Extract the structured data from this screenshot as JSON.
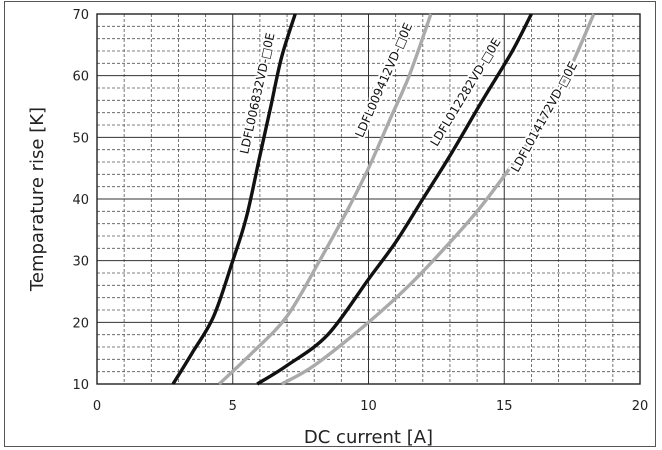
{
  "chart_data": {
    "type": "line",
    "title": "",
    "xlabel": "DC current [A]",
    "ylabel": "Temparature rise [K]",
    "xlim": [
      0,
      20
    ],
    "ylim": [
      10,
      70
    ],
    "xticks": [
      0,
      5,
      10,
      15,
      20
    ],
    "yticks": [
      10,
      20,
      30,
      40,
      50,
      60,
      70
    ],
    "grid": "major solid, minor dashed",
    "series": [
      {
        "name": "LDFL006832VD-□0E",
        "color": "#111111",
        "points": [
          [
            2.8,
            10
          ],
          [
            3.5,
            15
          ],
          [
            4.3,
            21
          ],
          [
            5.0,
            30
          ],
          [
            5.5,
            37
          ],
          [
            6.0,
            47
          ],
          [
            6.4,
            55
          ],
          [
            6.8,
            63
          ],
          [
            7.3,
            70
          ]
        ]
      },
      {
        "name": "LDFL009412VD-□0E",
        "color": "#aaaaaa",
        "points": [
          [
            4.5,
            10
          ],
          [
            5.7,
            15
          ],
          [
            7.0,
            21
          ],
          [
            8.2,
            30
          ],
          [
            9.2,
            38
          ],
          [
            10.0,
            45
          ],
          [
            10.8,
            53
          ],
          [
            11.5,
            60
          ],
          [
            12.3,
            70
          ]
        ]
      },
      {
        "name": "LDFL012282VD-□0E",
        "color": "#111111",
        "points": [
          [
            5.9,
            10
          ],
          [
            7.0,
            13
          ],
          [
            8.5,
            18
          ],
          [
            10.0,
            27
          ],
          [
            11.0,
            33
          ],
          [
            12.0,
            40
          ],
          [
            13.0,
            47
          ],
          [
            14.2,
            56
          ],
          [
            15.3,
            64
          ],
          [
            16.0,
            70
          ]
        ]
      },
      {
        "name": "LDFL014172VD-□0E",
        "color": "#aaaaaa",
        "points": [
          [
            6.8,
            10
          ],
          [
            8.0,
            13
          ],
          [
            10.0,
            20
          ],
          [
            11.5,
            26
          ],
          [
            12.8,
            32
          ],
          [
            14.0,
            38
          ],
          [
            15.2,
            45
          ],
          [
            16.3,
            52
          ],
          [
            17.3,
            60
          ],
          [
            18.3,
            70
          ]
        ]
      }
    ],
    "labels": [
      {
        "text": "LDFL006832VD-□0E",
        "x": 6.05,
        "y": 57
      },
      {
        "text": "LDFL009412VD-□0E",
        "x": 10.7,
        "y": 59
      },
      {
        "text": "LDFL012282VD-□0E",
        "x": 13.7,
        "y": 57
      },
      {
        "text": "LDFL014172VD-□0E",
        "x": 16.6,
        "y": 53
      }
    ]
  }
}
